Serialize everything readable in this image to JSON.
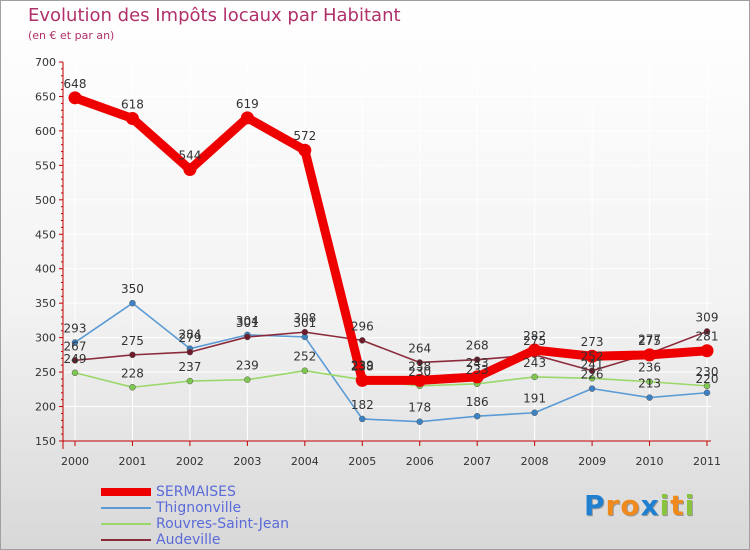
{
  "header": {
    "title": "Evolution des Impôts locaux par Habitant",
    "subtitle": "(en € et par an)"
  },
  "logo": {
    "text": "Proxiti",
    "letters": [
      {
        "ch": "P",
        "color": "#1f7fd0"
      },
      {
        "ch": "r",
        "color": "#f08a1c"
      },
      {
        "ch": "o",
        "color": "#f08a1c"
      },
      {
        "ch": "x",
        "color": "#1f7fd0"
      },
      {
        "ch": "i",
        "color": "#8ac43f"
      },
      {
        "ch": "t",
        "color": "#f08a1c"
      },
      {
        "ch": "i",
        "color": "#8ac43f"
      }
    ]
  },
  "colors": {
    "axis": "#c00000",
    "tick_text": "#333333",
    "label_text": "#333333",
    "grid": "#ffffff"
  },
  "chart_data": {
    "type": "line",
    "title": "Evolution des Impôts locaux par Habitant",
    "subtitle": "(en € et par an)",
    "x": [
      "2000",
      "2001",
      "2002",
      "2003",
      "2004",
      "2005",
      "2006",
      "2007",
      "2008",
      "2009",
      "2010",
      "2011"
    ],
    "ylim": [
      150,
      700
    ],
    "yticks": [
      150,
      200,
      250,
      300,
      350,
      400,
      450,
      500,
      550,
      600,
      650,
      700
    ],
    "grid": true,
    "legend_position": "bottom-left",
    "series": [
      {
        "name": "SERMAISES",
        "color": "#ee0000",
        "marker_color": "#ee0000",
        "style": "thick",
        "values": [
          648,
          618,
          544,
          619,
          572,
          238,
          238,
          243,
          282,
          273,
          275,
          281
        ],
        "labels": [
          "648",
          "618",
          "544",
          "619",
          "572",
          "238",
          "238",
          "243",
          "282",
          "273",
          "275",
          "281"
        ]
      },
      {
        "name": "Thignonville",
        "color": "#5b9bd5",
        "marker_color": "#3c82c4",
        "style": "thin",
        "values": [
          293,
          350,
          284,
          304,
          301,
          182,
          178,
          186,
          191,
          226,
          213,
          220
        ],
        "labels": [
          "293",
          "350",
          "284",
          "304",
          "301",
          "182",
          "178",
          "186",
          "191",
          "226",
          "213",
          "220"
        ]
      },
      {
        "name": "Rouvres-Saint-Jean",
        "color": "#9ad86a",
        "marker_color": "#7ec850",
        "style": "thin",
        "values": [
          249,
          228,
          237,
          239,
          252,
          239,
          230,
          233,
          243,
          241,
          236,
          230
        ],
        "labels": [
          "249",
          "228",
          "237",
          "239",
          "252",
          "239",
          "230",
          "233",
          "243",
          "241",
          "236",
          "230"
        ]
      },
      {
        "name": "Audeville",
        "color": "#8b2a3a",
        "marker_color": "#6e1a2a",
        "style": "thin",
        "values": [
          267,
          275,
          279,
          301,
          308,
          296,
          264,
          268,
          275,
          252,
          277,
          309
        ],
        "labels": [
          "267",
          "275",
          "279",
          "301",
          "308",
          "296",
          "264",
          "268",
          "275",
          "252",
          "277",
          "309"
        ]
      }
    ]
  }
}
